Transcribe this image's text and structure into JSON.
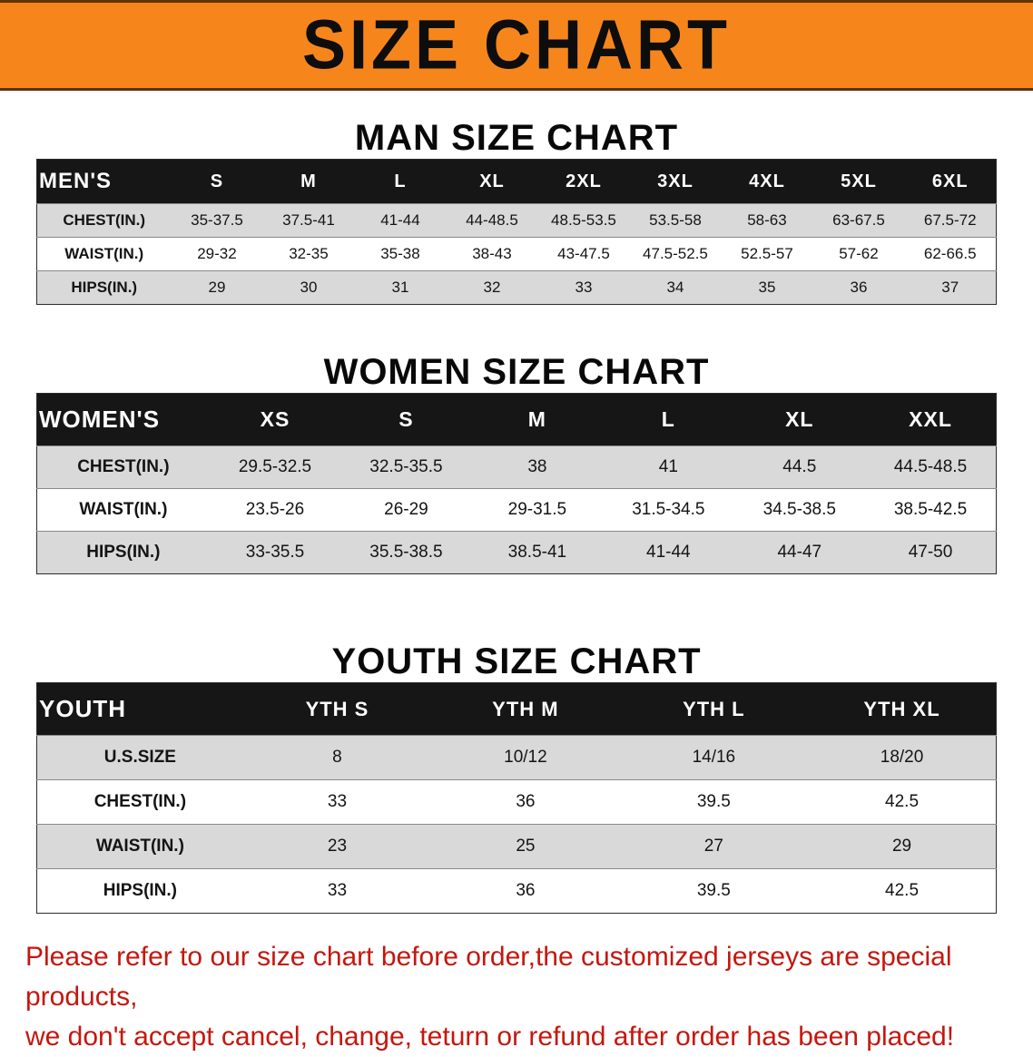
{
  "banner": {
    "title": "SIZE CHART"
  },
  "men": {
    "heading": "MAN SIZE CHART",
    "header": [
      "MEN'S",
      "S",
      "M",
      "L",
      "XL",
      "2XL",
      "3XL",
      "4XL",
      "5XL",
      "6XL"
    ],
    "rows": [
      [
        "CHEST(IN.)",
        "35-37.5",
        "37.5-41",
        "41-44",
        "44-48.5",
        "48.5-53.5",
        "53.5-58",
        "58-63",
        "63-67.5",
        "67.5-72"
      ],
      [
        "WAIST(IN.)",
        "29-32",
        "32-35",
        "35-38",
        "38-43",
        "43-47.5",
        "47.5-52.5",
        "52.5-57",
        "57-62",
        "62-66.5"
      ],
      [
        "HIPS(IN.)",
        "29",
        "30",
        "31",
        "32",
        "33",
        "34",
        "35",
        "36",
        "37"
      ]
    ]
  },
  "women": {
    "heading": "WOMEN SIZE CHART",
    "header": [
      "WOMEN'S",
      "XS",
      "S",
      "M",
      "L",
      "XL",
      "XXL"
    ],
    "rows": [
      [
        "CHEST(IN.)",
        "29.5-32.5",
        "32.5-35.5",
        "38",
        "41",
        "44.5",
        "44.5-48.5"
      ],
      [
        "WAIST(IN.)",
        "23.5-26",
        "26-29",
        "29-31.5",
        "31.5-34.5",
        "34.5-38.5",
        "38.5-42.5"
      ],
      [
        "HIPS(IN.)",
        "33-35.5",
        "35.5-38.5",
        "38.5-41",
        "41-44",
        "44-47",
        "47-50"
      ]
    ]
  },
  "youth": {
    "heading": "YOUTH SIZE CHART",
    "header": [
      "YOUTH",
      "YTH S",
      "YTH M",
      "YTH L",
      "YTH XL"
    ],
    "rows": [
      [
        "U.S.SIZE",
        "8",
        "10/12",
        "14/16",
        "18/20"
      ],
      [
        "CHEST(IN.)",
        "33",
        "36",
        "39.5",
        "42.5"
      ],
      [
        "WAIST(IN.)",
        "23",
        "25",
        "27",
        "29"
      ],
      [
        "HIPS(IN.)",
        "33",
        "36",
        "39.5",
        "42.5"
      ]
    ]
  },
  "disclaimer": {
    "line1": "Please refer to our size chart before order,the customized jerseys are special products,",
    "line2": "we don't accept cancel, change, teturn or refund after order has been placed!"
  },
  "colors": {
    "banner_bg": "#f6861c",
    "table_header_bg": "#161616",
    "row_alt_bg": "#d9d9d9",
    "disclaimer_text": "#c5170e"
  }
}
